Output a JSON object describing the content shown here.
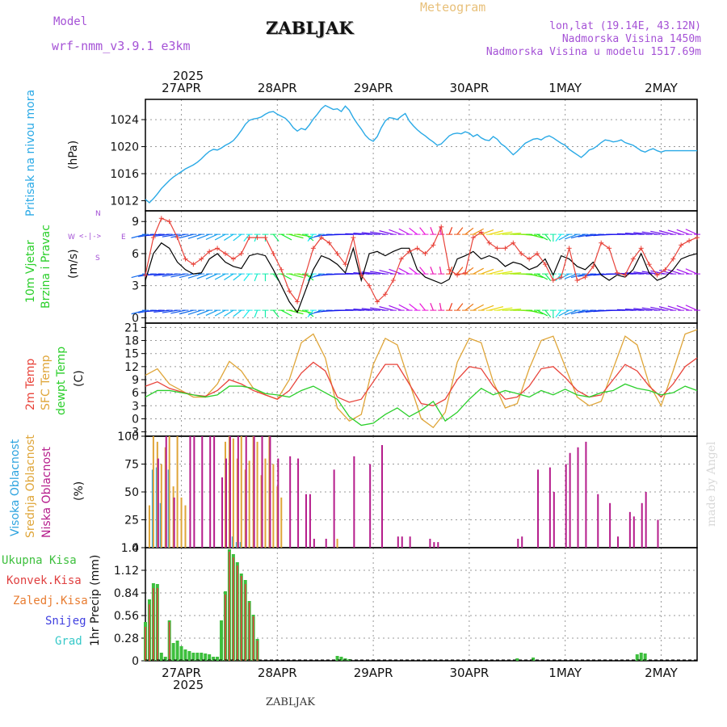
{
  "header": {
    "model_label": "Model",
    "model_name": "wrf-nmm_v3.9.1 e3km",
    "station_title": "ZABLJAK",
    "meteogram_label": "Meteogram",
    "coords": "lon,lat (19.14E, 43.12N)",
    "altitude": "Nadmorska Visina 1450m",
    "model_altitude": "Nadmorska Visina u modelu 1517.69m",
    "year": "2025",
    "footer_station": "ZABLJAK",
    "watermark": "made by Angel"
  },
  "colors": {
    "pressure": "#29a9e6",
    "wind_speed": "#000000",
    "wind_gust": "#e8433a",
    "temp2m": "#e8433a",
    "sfc_temp": "#dfa538",
    "dewpoint": "#2bcf2b",
    "high_cloud": "#2ca3df",
    "mid_cloud": "#dfa538",
    "low_cloud": "#b51c8b",
    "precip_total": "#3dbf3d",
    "precip_conv": "#e04040",
    "precip_frozen": "#e87c30",
    "snow": "#4040e0",
    "graupel": "#36c8c8"
  },
  "chart_data": [
    {
      "type": "line",
      "id": "pressure",
      "ylabel_1": "Pritisak na nivou mora",
      "ylabel_2": "(hPa)",
      "ylim": [
        1010.5,
        1027
      ],
      "yticks": [
        1012,
        1016,
        1020,
        1024
      ],
      "xlim": [
        0,
        138
      ],
      "x": [
        0,
        1,
        2,
        3,
        4,
        5,
        6,
        7,
        8,
        9,
        10,
        11,
        12,
        13,
        14,
        15,
        16,
        17,
        18,
        19,
        20,
        21,
        22,
        23,
        24,
        25,
        26,
        27,
        28,
        29,
        30,
        31,
        32,
        33,
        34,
        35,
        36,
        37,
        38,
        39,
        40,
        41,
        42,
        43,
        44,
        45,
        46,
        47,
        48,
        49,
        50,
        51,
        52,
        53,
        54,
        55,
        56,
        57,
        58,
        59,
        60,
        61,
        62,
        63,
        64,
        65,
        66,
        67,
        68,
        69,
        70,
        71,
        72,
        73,
        74,
        75,
        76,
        77,
        78,
        79,
        80,
        81,
        82,
        83,
        84,
        85,
        86,
        87,
        88,
        89,
        90,
        91,
        92,
        93,
        94,
        95,
        96,
        97,
        98,
        99,
        100,
        101,
        102,
        103,
        104,
        105,
        106,
        107,
        108,
        109,
        110,
        111,
        112,
        113,
        114,
        115,
        116,
        117,
        118,
        119,
        120,
        121,
        122,
        123,
        124,
        125,
        126,
        127,
        128,
        129,
        130,
        131,
        132,
        133,
        134,
        135,
        136,
        137,
        138
      ],
      "values": [
        1012.2,
        1011.7,
        1012.3,
        1013.0,
        1013.8,
        1014.4,
        1015.0,
        1015.5,
        1015.9,
        1016.3,
        1016.7,
        1017.0,
        1017.3,
        1017.7,
        1018.2,
        1018.8,
        1019.3,
        1019.6,
        1019.5,
        1019.8,
        1020.2,
        1020.5,
        1020.9,
        1021.6,
        1022.4,
        1023.3,
        1023.9,
        1024.1,
        1024.2,
        1024.4,
        1024.8,
        1025.1,
        1025.2,
        1024.8,
        1024.5,
        1024.2,
        1023.6,
        1022.8,
        1022.3,
        1022.7,
        1022.5,
        1023.2,
        1024.1,
        1024.8,
        1025.6,
        1026.1,
        1025.8,
        1025.5,
        1025.6,
        1025.2,
        1026.0,
        1025.4,
        1024.3,
        1023.4,
        1022.6,
        1021.7,
        1021.1,
        1020.8,
        1021.5,
        1022.8,
        1023.8,
        1024.3,
        1024.2,
        1024.0,
        1024.5,
        1024.9,
        1023.8,
        1023.1,
        1022.5,
        1022.0,
        1021.6,
        1021.1,
        1020.7,
        1020.2,
        1020.4,
        1021.0,
        1021.6,
        1021.9,
        1022.0,
        1021.9,
        1022.2,
        1022.0,
        1021.5,
        1021.8,
        1021.3,
        1021.0,
        1020.9,
        1021.5,
        1021.1,
        1020.4,
        1020.0,
        1019.4,
        1018.8,
        1019.3,
        1019.9,
        1020.5,
        1020.8,
        1021.1,
        1021.2,
        1021.0,
        1021.4,
        1021.6,
        1021.3,
        1020.9,
        1020.5,
        1020.2,
        1019.6,
        1019.2,
        1018.8,
        1018.4,
        1018.9,
        1019.5,
        1019.7,
        1020.1,
        1020.6,
        1021.0,
        1020.9,
        1020.7,
        1020.8,
        1021.0,
        1020.6,
        1020.4,
        1020.2,
        1019.8,
        1019.4,
        1019.2,
        1019.5,
        1019.7,
        1019.4,
        1019.2,
        1019.4,
        1019.4,
        1019.4,
        1019.4,
        1019.4,
        1019.4,
        1019.4,
        1019.4,
        1019.4
      ]
    },
    {
      "type": "line",
      "id": "wind",
      "ylabel_1": "10m Vjetar",
      "ylabel_2": "Brzina i Pravac",
      "ylabel_3": "(m/s)",
      "compass": {
        "n": "N",
        "s": "S",
        "w": "W",
        "e": "E"
      },
      "ylim": [
        -0.5,
        10
      ],
      "yticks": [
        0,
        3,
        6,
        9
      ],
      "barb_rows": [
        0.7,
        4.1,
        7.8
      ],
      "x": [
        0,
        2,
        4,
        6,
        8,
        10,
        12,
        14,
        16,
        18,
        20,
        22,
        24,
        26,
        28,
        30,
        32,
        34,
        36,
        38,
        40,
        42,
        44,
        46,
        48,
        50,
        52,
        54,
        56,
        58,
        60,
        62,
        64,
        66,
        68,
        70,
        72,
        74,
        76,
        78,
        80,
        82,
        84,
        86,
        88,
        90,
        92,
        94,
        96,
        98,
        100,
        102,
        104,
        106,
        108,
        110,
        112,
        114,
        116,
        118,
        120,
        122,
        124,
        126,
        128,
        130,
        132,
        134,
        136,
        138
      ],
      "speed": [
        3.5,
        6.0,
        7.0,
        6.5,
        5.2,
        4.5,
        4.1,
        4.2,
        5.5,
        6.0,
        5.2,
        4.8,
        4.6,
        5.8,
        6.0,
        5.8,
        4.5,
        3.0,
        1.5,
        0.5,
        2.5,
        4.5,
        5.8,
        5.5,
        5.0,
        4.2,
        6.5,
        3.5,
        6.0,
        6.2,
        5.8,
        6.2,
        6.5,
        6.5,
        4.5,
        3.8,
        3.5,
        3.2,
        3.6,
        5.5,
        5.8,
        6.2,
        5.5,
        5.8,
        5.5,
        4.8,
        5.2,
        5.0,
        4.5,
        4.8,
        5.5,
        4.0,
        5.8,
        5.5,
        4.8,
        4.5,
        5.2,
        4.0,
        3.5,
        4.0,
        3.8,
        4.5,
        6.0,
        4.2,
        3.5,
        3.8,
        4.5,
        5.5,
        5.8,
        6.0
      ],
      "gust": [
        4.0,
        7.5,
        9.3,
        9.0,
        7.5,
        5.5,
        5.0,
        5.5,
        6.2,
        6.5,
        6.0,
        5.5,
        6.0,
        7.5,
        7.5,
        7.5,
        6.0,
        4.5,
        2.5,
        1.5,
        4.0,
        6.5,
        7.5,
        7.0,
        6.0,
        5.0,
        7.5,
        4.0,
        3.0,
        1.5,
        2.2,
        3.5,
        5.5,
        6.2,
        6.5,
        6.0,
        6.8,
        8.5,
        4.5,
        4.0,
        4.2,
        7.5,
        8.0,
        7.0,
        6.5,
        6.5,
        7.0,
        6.0,
        5.5,
        6.0,
        5.0,
        3.5,
        3.8,
        6.5,
        3.5,
        3.8,
        4.8,
        7.0,
        6.5,
        4.2,
        4.0,
        5.5,
        6.5,
        5.0,
        4.0,
        4.5,
        5.5,
        6.8,
        7.2,
        7.5
      ],
      "dir": [
        240,
        250,
        260,
        255,
        250,
        245,
        240,
        235,
        230,
        225,
        220,
        215,
        210,
        200,
        190,
        180,
        160,
        140,
        120,
        110,
        150,
        200,
        230,
        250,
        260,
        265,
        270,
        275,
        280,
        285,
        290,
        300,
        310,
        320,
        330,
        340,
        350,
        355,
        10,
        20,
        30,
        40,
        50,
        60,
        70,
        80,
        90,
        100,
        120,
        140,
        160,
        180,
        200,
        220,
        230,
        240,
        250,
        255,
        260,
        265,
        270,
        275,
        280,
        285,
        290,
        295,
        300,
        305,
        310,
        315
      ]
    },
    {
      "type": "line",
      "id": "temperature",
      "ylabel_1": "2m Temp",
      "ylabel_2": "SFC Temp",
      "ylabel_3": "dewpt Temp",
      "ylabel_4": "(C)",
      "ylim": [
        -4,
        22
      ],
      "yticks": [
        -3,
        0,
        3,
        6,
        9,
        12,
        15,
        18,
        21
      ],
      "x": [
        0,
        3,
        6,
        9,
        12,
        15,
        18,
        21,
        24,
        27,
        30,
        33,
        36,
        39,
        42,
        45,
        48,
        51,
        54,
        57,
        60,
        63,
        66,
        69,
        72,
        75,
        78,
        81,
        84,
        87,
        90,
        93,
        96,
        99,
        102,
        105,
        108,
        111,
        114,
        117,
        120,
        123,
        126,
        129,
        132,
        135,
        138
      ],
      "t2m": [
        7.5,
        8.5,
        7.0,
        6.2,
        5.5,
        5.2,
        6.5,
        9.0,
        8.0,
        6.5,
        5.5,
        4.5,
        6.5,
        10.5,
        13.0,
        11.0,
        5.0,
        3.8,
        4.5,
        8.5,
        12.5,
        12.5,
        8.0,
        3.5,
        3.0,
        4.5,
        9.0,
        12.0,
        11.5,
        7.5,
        4.5,
        5.0,
        7.5,
        11.5,
        12.0,
        9.5,
        6.5,
        5.0,
        5.5,
        9.0,
        12.5,
        11.0,
        7.5,
        5.0,
        8.0,
        12.0,
        14.0
      ],
      "tsfc": [
        10.0,
        11.5,
        8.0,
        6.5,
        5.0,
        5.0,
        8.0,
        13.2,
        11.0,
        7.0,
        5.5,
        4.5,
        9.0,
        17.5,
        19.5,
        14.0,
        2.5,
        -0.5,
        1.0,
        12.5,
        18.5,
        17.0,
        8.5,
        0.0,
        -2.0,
        1.5,
        13.0,
        18.5,
        17.5,
        8.5,
        2.5,
        3.5,
        11.5,
        18.0,
        19.0,
        12.0,
        5.0,
        3.0,
        4.0,
        11.5,
        19.0,
        17.0,
        8.0,
        3.0,
        11.0,
        19.5,
        20.5
      ],
      "dewpt": [
        5.0,
        6.5,
        6.5,
        6.0,
        5.5,
        5.0,
        5.5,
        7.5,
        7.5,
        7.0,
        5.8,
        5.5,
        5.0,
        6.5,
        7.5,
        6.0,
        4.5,
        0.5,
        -1.5,
        -1.0,
        1.0,
        2.5,
        0.5,
        2.0,
        4.0,
        -0.5,
        1.5,
        4.5,
        7.0,
        5.5,
        6.5,
        5.8,
        5.0,
        6.5,
        5.5,
        6.8,
        5.5,
        5.0,
        6.0,
        6.5,
        8.0,
        7.0,
        6.5,
        5.5,
        6.0,
        7.5,
        6.5
      ]
    },
    {
      "type": "bar",
      "id": "cloud",
      "ylabel_1": "Visoka Oblacnost",
      "ylabel_2": "Srednja Oblacnost",
      "ylabel_3": "Niska Oblacnost",
      "ylabel_4": "(%)",
      "ylim": [
        0,
        100
      ],
      "yticks": [
        0,
        25,
        50,
        75,
        100
      ],
      "series": [
        {
          "name": "Visoka Oblacnost",
          "x": [
            2,
            3,
            4,
            6,
            22,
            23,
            24
          ],
          "values": [
            70,
            72,
            40,
            70,
            10,
            5,
            5
          ]
        },
        {
          "name": "Srednja Oblacnost",
          "x": [
            1,
            2,
            3,
            4,
            5,
            6,
            7,
            8,
            9,
            10,
            20,
            21,
            22,
            23,
            24,
            25,
            26,
            27,
            28,
            29,
            30,
            31,
            32,
            33,
            34,
            48
          ],
          "values": [
            38,
            100,
            95,
            75,
            90,
            100,
            55,
            100,
            45,
            38,
            95,
            100,
            98,
            80,
            100,
            70,
            78,
            100,
            95,
            65,
            80,
            100,
            75,
            55,
            45,
            8
          ]
        },
        {
          "name": "Niska Oblacnost",
          "x": [
            3,
            5,
            7,
            11,
            12,
            14,
            16,
            17,
            19,
            20,
            21,
            23,
            25,
            27,
            29,
            31,
            33,
            36,
            38,
            40,
            41,
            42,
            45,
            47,
            52,
            56,
            59,
            63,
            64,
            66,
            71,
            72,
            73,
            93,
            94,
            98,
            101,
            102,
            105,
            106,
            108,
            110,
            113,
            116,
            118,
            121,
            122,
            124,
            125,
            128
          ],
          "values": [
            80,
            100,
            45,
            100,
            100,
            100,
            100,
            100,
            63,
            80,
            100,
            100,
            100,
            100,
            100,
            100,
            80,
            82,
            80,
            48,
            48,
            8,
            8,
            70,
            82,
            75,
            92,
            10,
            10,
            10,
            8,
            5,
            5,
            8,
            10,
            70,
            72,
            50,
            75,
            85,
            90,
            95,
            48,
            40,
            10,
            32,
            28,
            40,
            50,
            25
          ]
        },
        {
          "name": "Ukupna Oblacnost",
          "x": [],
          "values": []
        }
      ]
    },
    {
      "type": "bar",
      "id": "precip",
      "ylabel_1": "1hr Precip",
      "ylabel_2": "(mm)",
      "legend": [
        "Ukupna Kisa",
        "Konvek.Kisa",
        "Zaledj.Kisa",
        "Snijeg",
        "Grad"
      ],
      "ylim": [
        0,
        1.4
      ],
      "yticks": [
        0,
        0.28,
        0.56,
        0.84,
        1.12,
        1.4
      ],
      "x": [
        0,
        1,
        2,
        3,
        4,
        5,
        6,
        7,
        8,
        9,
        10,
        11,
        12,
        13,
        14,
        15,
        16,
        17,
        18,
        19,
        20,
        21,
        22,
        23,
        24,
        25,
        26,
        27,
        28,
        48,
        49,
        50,
        51,
        93,
        97,
        123,
        124,
        125
      ],
      "total": [
        0.48,
        0.76,
        0.96,
        0.95,
        0.1,
        0.05,
        0.5,
        0.22,
        0.25,
        0.18,
        0.14,
        0.12,
        0.1,
        0.1,
        0.1,
        0.09,
        0.08,
        0.05,
        0.05,
        0.5,
        0.86,
        1.38,
        1.32,
        1.22,
        1.08,
        1.0,
        0.74,
        0.57,
        0.27,
        0.06,
        0.05,
        0.03,
        0.02,
        0.03,
        0.04,
        0.08,
        0.1,
        0.09
      ],
      "convective": [
        0.42,
        0.7,
        0.9,
        0.9,
        0.0,
        0.0,
        0.48,
        0.0,
        0.0,
        0.0,
        0.0,
        0.0,
        0.0,
        0.0,
        0.0,
        0.0,
        0.0,
        0.0,
        0.0,
        0.0,
        0.82,
        1.35,
        1.28,
        1.18,
        1.05,
        0.95,
        0.72,
        0.55,
        0.25,
        0.0,
        0.0,
        0.0,
        0.0,
        0.0,
        0.0,
        0.0,
        0.0,
        0.0
      ]
    }
  ],
  "axis": {
    "top_labels": [
      "27APR",
      "28APR",
      "29APR",
      "30APR",
      "1MAY",
      "2MAY"
    ],
    "bottom_labels": [
      "27APR",
      "28APR",
      "29APR",
      "30APR",
      "1MAY",
      "2MAY"
    ],
    "day_positions": [
      9,
      33,
      57,
      81,
      105,
      129
    ]
  }
}
